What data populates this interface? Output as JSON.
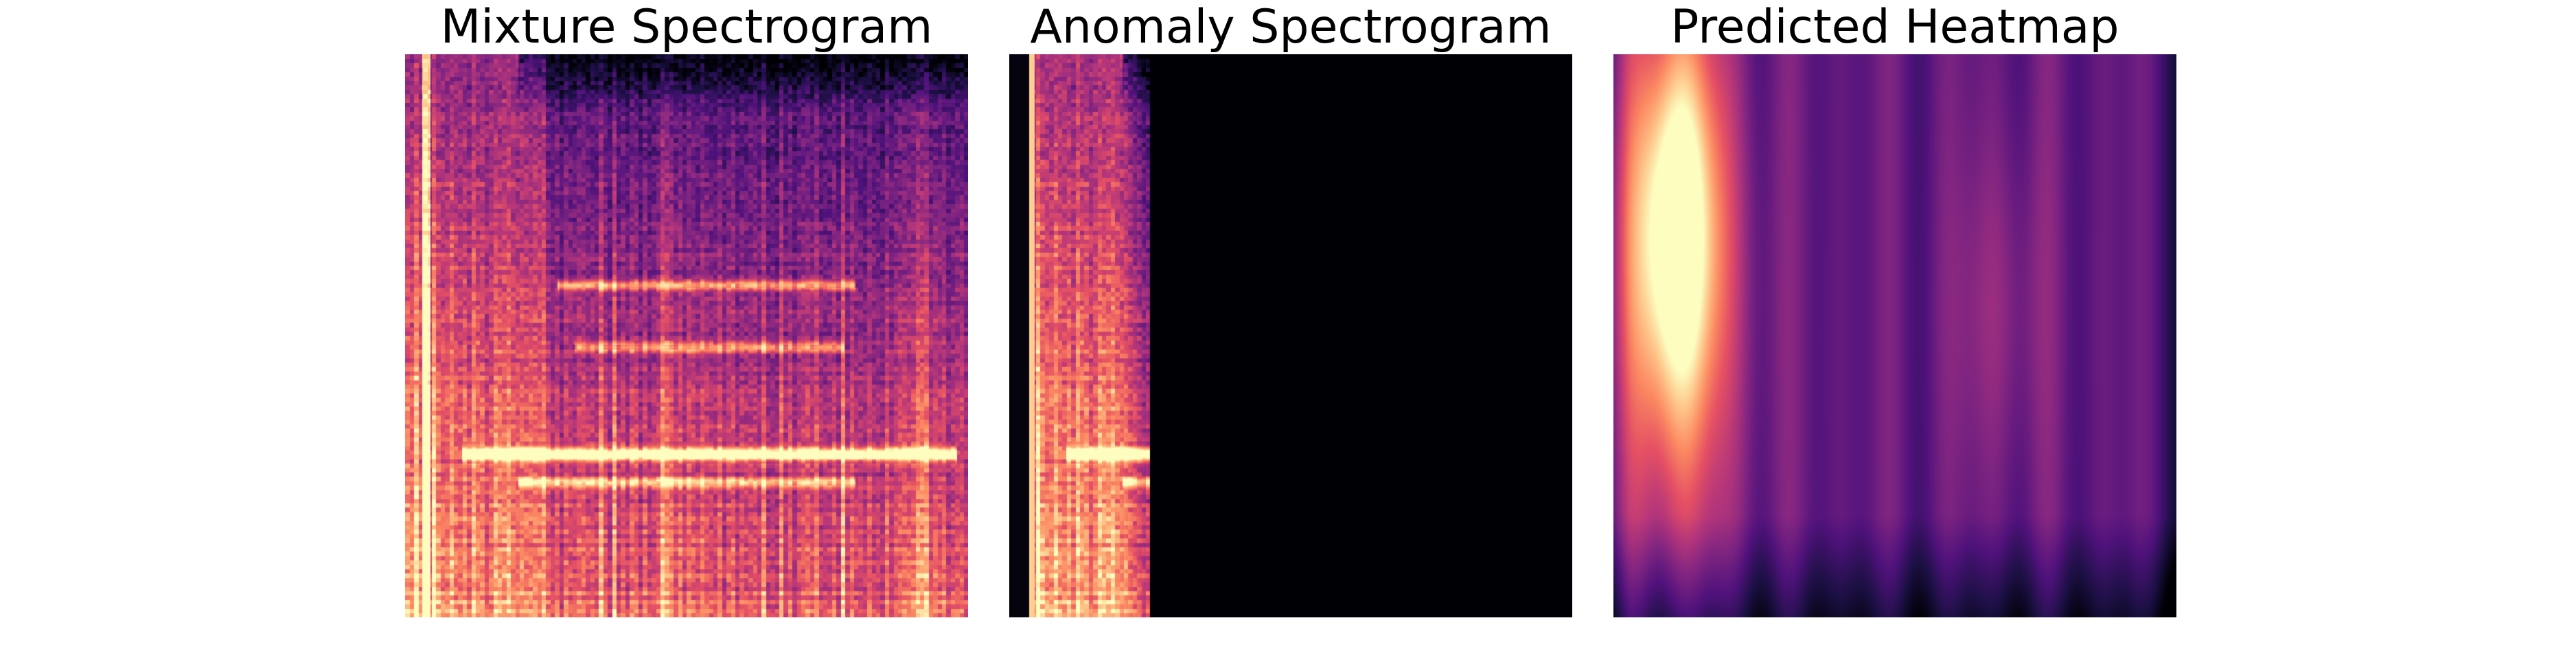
{
  "colormap": "magma",
  "colors": {
    "background": "#ffffff",
    "magma_stops": [
      "#000004",
      "#1c1044",
      "#4f127b",
      "#812581",
      "#b5367a",
      "#e55064",
      "#fb8761",
      "#fec287",
      "#fcfdbf"
    ]
  },
  "chart_data": [
    {
      "type": "heatmap",
      "title": "Mixture Spectrogram",
      "xlabel": "",
      "ylabel": "",
      "axes_visible": false,
      "grid": false,
      "legend": "none",
      "colormap": "magma",
      "grid_size": [
        128,
        128
      ],
      "description_of_content": "full-band mixture: dense vertical onset bands across time, bright horizontal harmonic lines near upper-middle and lower-middle, bright left edge"
    },
    {
      "type": "heatmap",
      "title": "Anomaly Spectrogram",
      "xlabel": "",
      "ylabel": "",
      "axes_visible": false,
      "grid": false,
      "legend": "none",
      "colormap": "magma",
      "grid_size": [
        128,
        128
      ],
      "active_time_fraction": [
        0.03,
        0.25
      ],
      "description_of_content": "energy only in the first ~25% of time frames, remainder silent (black)"
    },
    {
      "type": "heatmap",
      "title": "Predicted Heatmap",
      "xlabel": "",
      "ylabel": "",
      "axes_visible": false,
      "grid": false,
      "legend": "none",
      "colormap": "magma",
      "grid_size": [
        128,
        128
      ],
      "peak_time_fraction": 0.11,
      "peak_freq_fraction": 0.3,
      "description_of_content": "smooth prediction with bright vertical blob at left (time ~0.11), diffuse purple elsewhere"
    }
  ]
}
